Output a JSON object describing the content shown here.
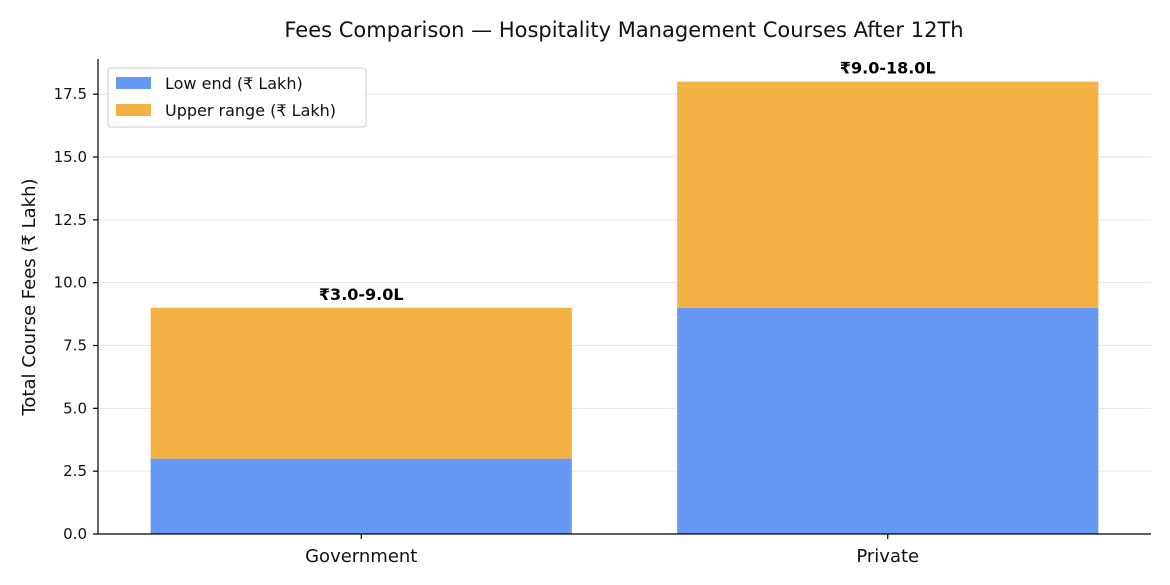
{
  "chart_data": {
    "type": "bar",
    "stacked": true,
    "title": "Fees Comparison — Hospitality Management Courses After 12Th",
    "xlabel": "",
    "ylabel": "Total Course Fees (₹ Lakh)",
    "categories": [
      "Government",
      "Private"
    ],
    "series": [
      {
        "name": "Low end (₹ Lakh)",
        "values": [
          3.0,
          9.0
        ],
        "color": "#6599f3"
      },
      {
        "name": "Upper range (₹ Lakh)",
        "values": [
          6.0,
          9.0
        ],
        "color": "#f5b244"
      }
    ],
    "data_labels": [
      "₹3.0-9.0L",
      "₹9.0-18.0L"
    ],
    "ylim": [
      0,
      18.9
    ],
    "yticks": [
      0,
      2.5,
      5,
      7.5,
      10,
      12.5,
      15,
      17.5
    ],
    "ytick_labels": [
      "0.0",
      "2.5",
      "5.0",
      "7.5",
      "10.0",
      "12.5",
      "15.0",
      "17.5"
    ],
    "grid": true,
    "legend_position": "top-left"
  }
}
